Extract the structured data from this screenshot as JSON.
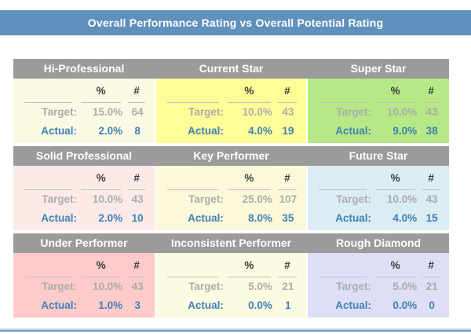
{
  "title_bar": {
    "text": "Overall Performance Rating vs Overall Potential Rating",
    "background": "#6090BC"
  },
  "columns": {
    "percent_header": "%",
    "count_header": "#"
  },
  "labels": {
    "target": "Target:",
    "actual": "Actual:"
  },
  "appearance": {
    "row_header_background": "#9B9B9B",
    "target_text_color": "#ACACAC",
    "actual_text_color": "#4081B5",
    "column_header_text_color": "#3C3C3C",
    "bottom_bar_color": "#6E9AC2"
  },
  "grid": {
    "rows": [
      {
        "cells": [
          {
            "title": "Hi-Professional",
            "bg": "#FAF9E4",
            "target_pct": "15.0%",
            "target_count": "64",
            "actual_pct": "2.0%",
            "actual_count": "8"
          },
          {
            "title": "Current Star",
            "bg": "#FEFE99",
            "target_pct": "10.0%",
            "target_count": "43",
            "actual_pct": "4.0%",
            "actual_count": "19"
          },
          {
            "title": "Super Star",
            "bg": "#B6E885",
            "target_pct": "10.0%",
            "target_count": "43",
            "actual_pct": "9.0%",
            "actual_count": "38"
          }
        ]
      },
      {
        "cells": [
          {
            "title": "Solid Professional",
            "bg": "#FBEAE8",
            "target_pct": "10.0%",
            "target_count": "43",
            "actual_pct": "2.0%",
            "actual_count": "10"
          },
          {
            "title": "Key Performer",
            "bg": "#FCF9DB",
            "target_pct": "25.0%",
            "target_count": "107",
            "actual_pct": "8.0%",
            "actual_count": "35"
          },
          {
            "title": "Future Star",
            "bg": "#D9EDF3",
            "target_pct": "10.0%",
            "target_count": "43",
            "actual_pct": "4.0%",
            "actual_count": "15"
          }
        ]
      },
      {
        "cells": [
          {
            "title": "Under Performer",
            "bg": "#FECACA",
            "target_pct": "10.0%",
            "target_count": "43",
            "actual_pct": "1.0%",
            "actual_count": "3"
          },
          {
            "title": "Inconsistent Performer",
            "bg": "#FCFAE1",
            "target_pct": "5.0%",
            "target_count": "21",
            "actual_pct": "0.0%",
            "actual_count": "1"
          },
          {
            "title": "Rough Diamond",
            "bg": "#DEDEF6",
            "target_pct": "5.0%",
            "target_count": "21",
            "actual_pct": "0.0%",
            "actual_count": "0"
          }
        ]
      }
    ]
  }
}
